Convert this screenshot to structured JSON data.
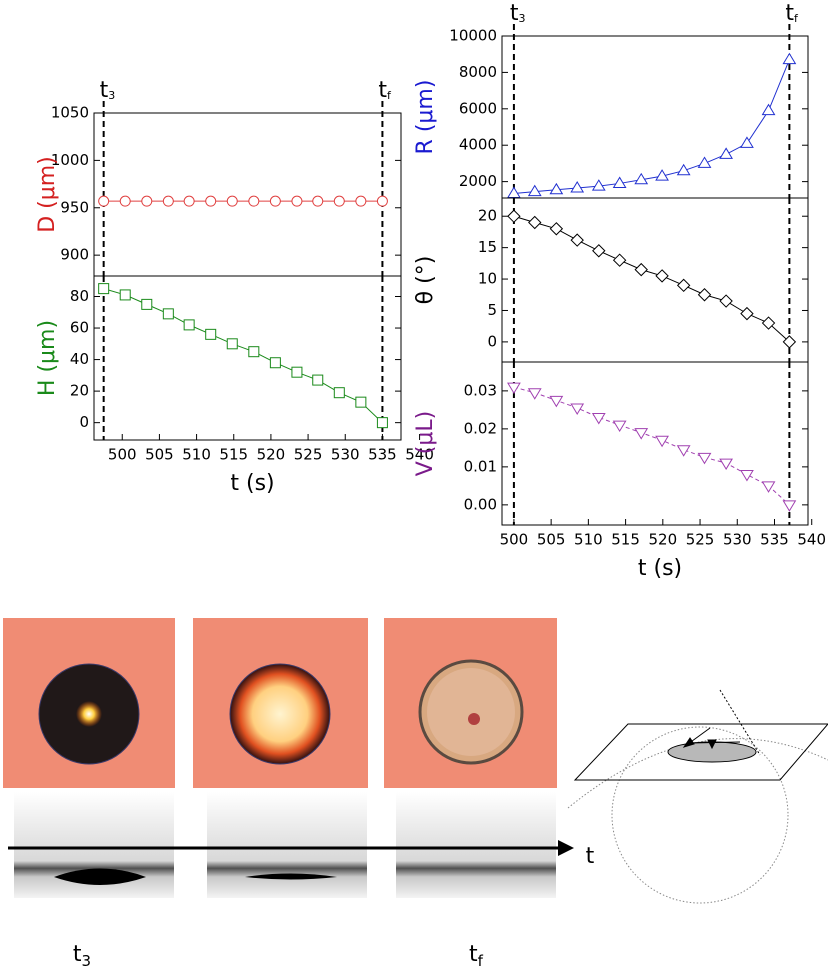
{
  "chart_data": [
    {
      "type": "line",
      "y_label": "D (μm)",
      "y_label_color": "#d42020",
      "color": "#e04040",
      "marker": "circle",
      "dash": false,
      "x": [
        497.5,
        500.4,
        503.3,
        506.2,
        509.0,
        511.9,
        514.8,
        517.7,
        520.6,
        523.5,
        526.3,
        529.2,
        532.1,
        535.0
      ],
      "values": [
        957,
        957,
        957,
        957,
        957,
        957,
        957,
        957,
        957,
        957,
        957,
        957,
        957,
        957
      ],
      "xlim": [
        496.2,
        537.5
      ],
      "ylim": [
        878,
        1050
      ],
      "yticks": [
        900,
        950,
        1000,
        1050
      ],
      "vlines": [
        497.5,
        535.0
      ],
      "vline_labels": [
        {
          "text": "t",
          "sub": "3"
        },
        {
          "text": "t",
          "sub": "f"
        }
      ]
    },
    {
      "type": "line",
      "y_label": "H (μm)",
      "y_label_color": "#1a8a1a",
      "color": "#1a8a1a",
      "marker": "square",
      "dash": false,
      "x": [
        497.5,
        500.4,
        503.3,
        506.2,
        509.0,
        511.9,
        514.8,
        517.7,
        520.6,
        523.5,
        526.3,
        529.2,
        532.1,
        535.0
      ],
      "values": [
        85,
        81,
        75,
        69,
        62,
        56,
        50,
        45,
        38,
        32,
        27,
        19,
        13,
        0
      ],
      "xlim": [
        496.2,
        537.5
      ],
      "ylim": [
        -11,
        93
      ],
      "yticks": [
        0,
        20,
        40,
        60,
        80
      ],
      "xticks": [
        500,
        505,
        510,
        515,
        520,
        525,
        530,
        535,
        540
      ],
      "x_label": "t (s)",
      "vlines": [
        497.5,
        535.0
      ]
    },
    {
      "type": "line",
      "y_label": "R (μm)",
      "y_label_color": "#1a1ad0",
      "color": "#2030d0",
      "marker": "triangle-up",
      "dash": false,
      "x": [
        500,
        502.8,
        505.7,
        508.5,
        511.4,
        514.2,
        517.1,
        519.9,
        522.8,
        525.6,
        528.5,
        531.3,
        534.2,
        537
      ],
      "values": [
        1350,
        1450,
        1550,
        1650,
        1750,
        1900,
        2100,
        2300,
        2600,
        3000,
        3500,
        4100,
        5900,
        8700
      ],
      "xlim": [
        498.4,
        539.5
      ],
      "ylim": [
        1100,
        10000
      ],
      "yticks": [
        2000,
        4000,
        6000,
        8000,
        10000
      ],
      "vlines": [
        500,
        537
      ],
      "vline_labels": [
        {
          "text": "t",
          "sub": "3"
        },
        {
          "text": "t",
          "sub": "f"
        }
      ]
    },
    {
      "type": "line",
      "y_label": "θ (°)",
      "y_label_color": "#000000",
      "color": "#000000",
      "marker": "diamond",
      "dash": false,
      "x": [
        500,
        502.8,
        505.7,
        508.5,
        511.4,
        514.2,
        517.1,
        519.9,
        522.8,
        525.6,
        528.5,
        531.3,
        534.2,
        537
      ],
      "values": [
        20,
        19,
        18,
        16.2,
        14.5,
        13,
        11.5,
        10.5,
        9,
        7.5,
        6.5,
        4.5,
        3,
        0
      ],
      "xlim": [
        498.4,
        539.5
      ],
      "ylim": [
        -3.2,
        22.9
      ],
      "yticks": [
        0,
        5,
        10,
        15,
        20
      ],
      "vlines": [
        500,
        537
      ]
    },
    {
      "type": "line",
      "y_label": "V (μL)",
      "y_label_color": "#7a1a8a",
      "color": "#a040b0",
      "marker": "triangle-down",
      "dash": true,
      "x": [
        500,
        502.8,
        505.7,
        508.5,
        511.4,
        514.2,
        517.1,
        519.9,
        522.8,
        525.6,
        528.5,
        531.3,
        534.2,
        537
      ],
      "values": [
        0.031,
        0.0295,
        0.0275,
        0.0255,
        0.023,
        0.021,
        0.019,
        0.017,
        0.0145,
        0.0125,
        0.011,
        0.008,
        0.005,
        0
      ],
      "xlim": [
        498.4,
        539.5
      ],
      "ylim": [
        -0.0053,
        0.0376
      ],
      "yticks": [
        {
          "value": 0,
          "label": "0.00"
        },
        0.01,
        0.02,
        0.03
      ],
      "xticks": [
        500,
        505,
        510,
        515,
        520,
        525,
        530,
        535,
        540
      ],
      "x_label": "t (s)",
      "vlines": [
        500,
        537
      ]
    }
  ],
  "timeline": {
    "start": {
      "text": "t",
      "sub": "3"
    },
    "end": {
      "text": "t",
      "sub": "f"
    },
    "axis_label": "t"
  }
}
